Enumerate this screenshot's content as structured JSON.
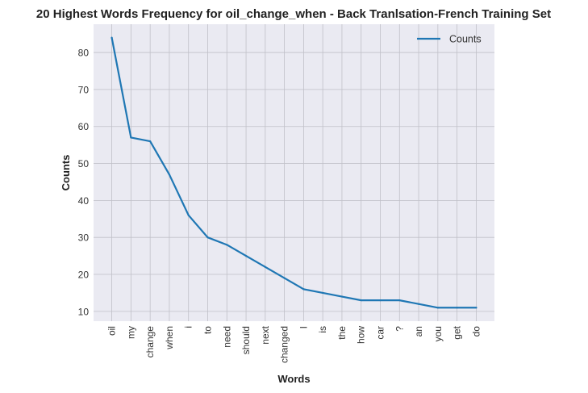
{
  "chart_data": {
    "type": "line",
    "title": "20 Highest Words Frequency for oil_change_when - Back Tranlsation-French Training Set",
    "xlabel": "Words",
    "ylabel": "Counts",
    "categories": [
      "oil",
      "my",
      "change",
      "when",
      "i",
      "to",
      "need",
      "should",
      "next",
      "changed",
      "I",
      "is",
      "the",
      "how",
      "car",
      "?",
      "an",
      "you",
      "get",
      "do"
    ],
    "series": [
      {
        "name": "Counts",
        "color": "#1f77b4",
        "values": [
          84,
          57,
          56,
          47,
          36,
          30,
          28,
          25,
          22,
          19,
          16,
          15,
          14,
          13,
          13,
          13,
          12,
          11,
          11,
          11
        ]
      }
    ],
    "yticks": [
      10,
      20,
      30,
      40,
      50,
      60,
      70,
      80
    ],
    "ylim": [
      7.35,
      87.65
    ],
    "grid": true,
    "legend_position": "top-right",
    "colors": {
      "plot_background": "#eaeaf2",
      "grid": "#c0c0c8"
    }
  }
}
